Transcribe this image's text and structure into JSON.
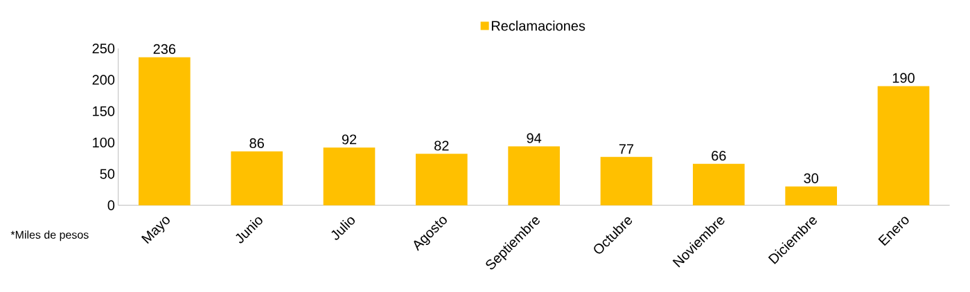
{
  "chart_data": {
    "type": "bar",
    "categories": [
      "Mayo",
      "Junio",
      "Julio",
      "Agosto",
      "Septiembre",
      "Octubre",
      "Noviembre",
      "Diciembre",
      "Enero"
    ],
    "series": [
      {
        "name": "Reclamaciones",
        "color": "#ffc000",
        "values": [
          236,
          86,
          92,
          82,
          94,
          77,
          66,
          30,
          190
        ]
      }
    ],
    "ylim": [
      0,
      250
    ],
    "yticks": [
      0,
      50,
      100,
      150,
      200,
      250
    ],
    "data_labels": true,
    "legend": "top",
    "grid": false,
    "annotations": [
      "*Miles de pesos"
    ]
  }
}
